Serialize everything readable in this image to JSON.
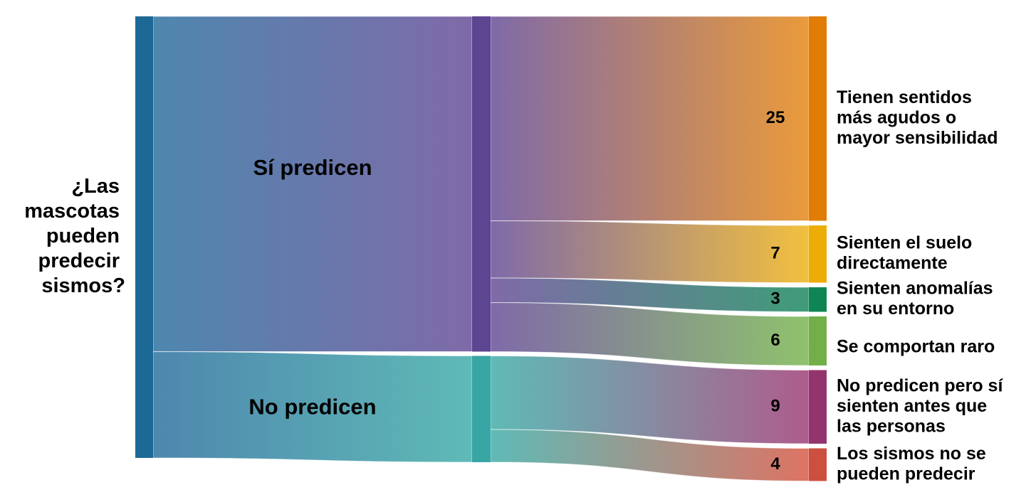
{
  "chart_data": {
    "type": "sankey",
    "source": {
      "label_lines": [
        "¿Las",
        "mascotas",
        "pueden",
        "predecir",
        "sismos?"
      ],
      "color": "#1d6996",
      "link_color": "#4e87ae"
    },
    "groups": [
      {
        "name": "Sí predicen",
        "color": "#5e4591",
        "link_color": "#7f6aa8",
        "targets": [
          {
            "label_lines": [
              "Tienen sentidos",
              "más agudos o",
              "mayor sensibilidad"
            ],
            "value": 25,
            "color": "#e17c05",
            "link_color": "#ea9a3a"
          },
          {
            "label_lines": [
              "Sienten el suelo",
              "directamente"
            ],
            "value": 7,
            "color": "#edad08",
            "link_color": "#f2c03e"
          },
          {
            "label_lines": [
              "Sienten anomalías",
              "en su entorno"
            ],
            "value": 3,
            "color": "#0f8554",
            "link_color": "#3f9c78"
          },
          {
            "label_lines": [
              "Se comportan raro"
            ],
            "value": 6,
            "color": "#73af48",
            "link_color": "#8fc26d"
          }
        ]
      },
      {
        "name": "No predicen",
        "color": "#38a6a5",
        "link_color": "#5fbab6",
        "targets": [
          {
            "label_lines": [
              "No predicen pero sí",
              "sienten antes que",
              "las personas"
            ],
            "value": 9,
            "color": "#94346e",
            "link_color": "#ae5c8c"
          },
          {
            "label_lines": [
              "Los sismos no se",
              "pueden predecir"
            ],
            "value": 4,
            "color": "#cc503e",
            "link_color": "#de7363"
          }
        ]
      }
    ]
  }
}
